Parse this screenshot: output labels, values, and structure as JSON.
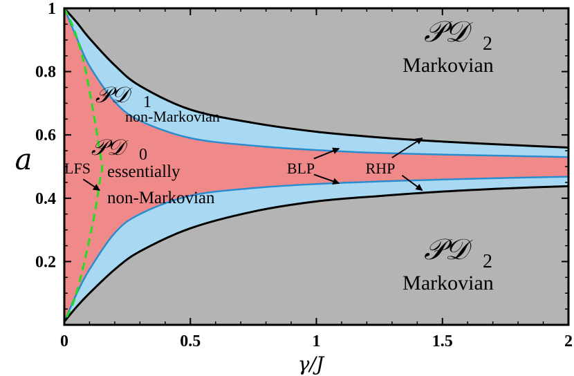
{
  "chart_data": {
    "type": "area",
    "xlabel": "γ/J",
    "ylabel": "a",
    "xlim": [
      0,
      2
    ],
    "ylim": [
      0,
      1
    ],
    "x_ticks": [
      {
        "value": 0,
        "label": "0"
      },
      {
        "value": 0.5,
        "label": "0.5"
      },
      {
        "value": 1,
        "label": "1"
      },
      {
        "value": 1.5,
        "label": "1.5"
      },
      {
        "value": 2,
        "label": "2"
      }
    ],
    "y_ticks": [
      {
        "value": 0.2,
        "label": "0.2"
      },
      {
        "value": 0.4,
        "label": "0.4"
      },
      {
        "value": 0.6,
        "label": "0.6"
      },
      {
        "value": 0.8,
        "label": "0.8"
      },
      {
        "value": 1,
        "label": "1"
      }
    ],
    "colors": {
      "pd2": "#b4b4b4",
      "pd1": "#a9d8f3",
      "pd0": "#f08a8a",
      "outer_line": "#000000",
      "inner_line": "#2a8ccd",
      "lfs_line": "#22dd22"
    },
    "curves": {
      "outer_upper": {
        "x": [
          0,
          0.05,
          0.1,
          0.2,
          0.3,
          0.5,
          0.75,
          1.0,
          1.25,
          1.5,
          1.75,
          2.0
        ],
        "y": [
          1.0,
          0.955,
          0.905,
          0.82,
          0.755,
          0.68,
          0.638,
          0.61,
          0.592,
          0.579,
          0.569,
          0.56
        ]
      },
      "inner_upper": {
        "x": [
          0,
          0.05,
          0.1,
          0.2,
          0.3,
          0.5,
          0.75,
          1.0,
          1.25,
          1.5,
          1.75,
          2.0
        ],
        "y": [
          1.0,
          0.905,
          0.818,
          0.705,
          0.645,
          0.59,
          0.566,
          0.552,
          0.543,
          0.538,
          0.534,
          0.53
        ]
      },
      "inner_lower": {
        "x": [
          0,
          0.05,
          0.1,
          0.2,
          0.3,
          0.5,
          0.75,
          1.0,
          1.25,
          1.5,
          1.75,
          2.0
        ],
        "y": [
          0.01,
          0.1,
          0.175,
          0.29,
          0.35,
          0.408,
          0.432,
          0.445,
          0.453,
          0.459,
          0.464,
          0.468
        ]
      },
      "outer_lower": {
        "x": [
          0,
          0.05,
          0.1,
          0.2,
          0.3,
          0.5,
          0.75,
          1.0,
          1.25,
          1.5,
          1.75,
          2.0
        ],
        "y": [
          0.01,
          0.058,
          0.1,
          0.175,
          0.232,
          0.305,
          0.358,
          0.39,
          0.407,
          0.421,
          0.431,
          0.438
        ]
      },
      "lfs": {
        "x": [
          0,
          0.04,
          0.08,
          0.12,
          0.14,
          0.15,
          0.14,
          0.12,
          0.08,
          0.04,
          0
        ],
        "y": [
          1.0,
          0.93,
          0.82,
          0.65,
          0.55,
          0.5,
          0.45,
          0.35,
          0.2,
          0.08,
          0.01
        ]
      }
    },
    "regions": [
      {
        "symbol": "𝒫𝒟",
        "sub": "2",
        "desc": [
          "Markovian"
        ]
      },
      {
        "symbol": "𝒫𝒟",
        "sub": "1",
        "desc": [
          "non-Markovian"
        ]
      },
      {
        "symbol": "𝒫𝒟",
        "sub": "0",
        "desc": [
          "essentially",
          "non-Markovian"
        ]
      },
      {
        "symbol": "𝒫𝒟",
        "sub": "2",
        "desc": [
          "Markovian"
        ]
      }
    ],
    "annotations": [
      {
        "text": "LFS",
        "arrows": [
          {
            "from": [
              0.075,
              0.46
            ],
            "to": [
              0.14,
              0.425
            ]
          }
        ]
      },
      {
        "text": "BLP",
        "arrows": [
          {
            "from": [
              0.99,
              0.525
            ],
            "to": [
              1.09,
              0.557
            ]
          },
          {
            "from": [
              0.99,
              0.475
            ],
            "to": [
              1.09,
              0.447
            ]
          }
        ]
      },
      {
        "text": "RHP",
        "arrows": [
          {
            "from": [
              1.3,
              0.528
            ],
            "to": [
              1.42,
              0.59
            ]
          },
          {
            "from": [
              1.34,
              0.472
            ],
            "to": [
              1.42,
              0.425
            ]
          }
        ]
      }
    ]
  }
}
